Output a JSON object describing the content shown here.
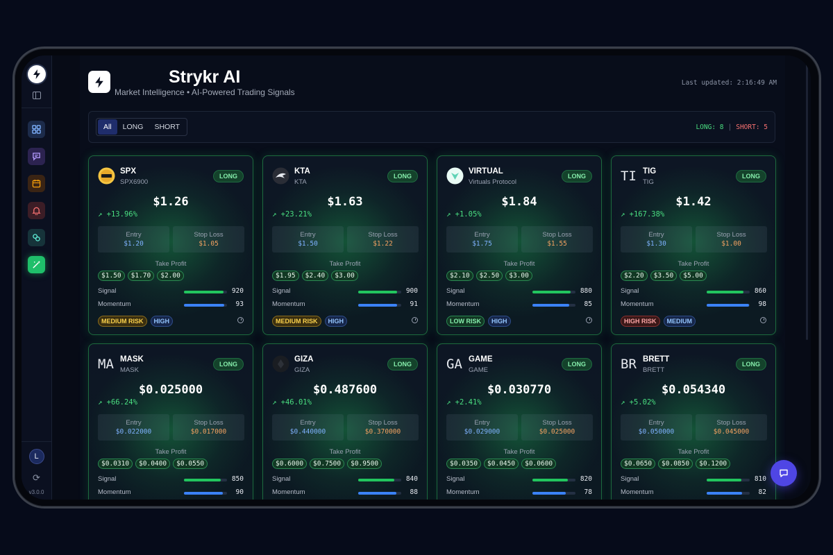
{
  "app": {
    "title": "Strykr AI",
    "subtitle": "Market Intelligence • AI-Powered Trading Signals",
    "last_updated": "Last updated: 2:16:49 AM",
    "version": "v3.0.0",
    "user_initial": "L"
  },
  "sidebar": {
    "items": [
      {
        "name": "dashboard",
        "icon": "grid-icon",
        "color": "#1c2b4a"
      },
      {
        "name": "chat",
        "icon": "message-icon",
        "color": "#2c2350"
      },
      {
        "name": "calendar",
        "icon": "calendar-icon",
        "color": "#3a2414"
      },
      {
        "name": "alerts",
        "icon": "bell-icon",
        "color": "#3c1d26"
      },
      {
        "name": "links",
        "icon": "link-icon",
        "color": "#16333a"
      },
      {
        "name": "signals",
        "icon": "magic-wand-icon",
        "color": "#1fbf6a"
      }
    ]
  },
  "filters": {
    "tabs": [
      "All",
      "LONG",
      "SHORT"
    ],
    "active": "All",
    "long_count": "LONG: 8",
    "separator": "|",
    "short_count": "SHORT: 5"
  },
  "labels": {
    "entry": "Entry",
    "stop_loss": "Stop Loss",
    "take_profit": "Take Profit",
    "signal": "Signal",
    "momentum": "Momentum"
  },
  "cards": [
    {
      "symbol": "SPX",
      "name": "SPX6900",
      "logo": "spx-coin-logo",
      "direction": "LONG",
      "price": "$1.26",
      "change": "+13.96%",
      "entry": "$1.20",
      "stop": "$1.05",
      "take_profit": [
        "$1.50",
        "$1.70",
        "$2.00"
      ],
      "signal": "920",
      "signal_pct": 0.92,
      "momentum": "93",
      "momentum_pct": 0.93,
      "risk": "MEDIUM RISK",
      "risk_level": "medium",
      "confidence": "HIGH"
    },
    {
      "symbol": "KTA",
      "name": "KTA",
      "logo": "kta-coin-logo",
      "direction": "LONG",
      "price": "$1.63",
      "change": "+23.21%",
      "entry": "$1.50",
      "stop": "$1.22",
      "take_profit": [
        "$1.95",
        "$2.40",
        "$3.00"
      ],
      "signal": "900",
      "signal_pct": 0.9,
      "momentum": "91",
      "momentum_pct": 0.91,
      "risk": "MEDIUM RISK",
      "risk_level": "medium",
      "confidence": "HIGH"
    },
    {
      "symbol": "VIRTUAL",
      "name": "Virtuals Protocol",
      "logo": "virtual-coin-logo",
      "direction": "LONG",
      "price": "$1.84",
      "change": "+1.05%",
      "entry": "$1.75",
      "stop": "$1.55",
      "take_profit": [
        "$2.10",
        "$2.50",
        "$3.00"
      ],
      "signal": "880",
      "signal_pct": 0.88,
      "momentum": "85",
      "momentum_pct": 0.85,
      "risk": "LOW RISK",
      "risk_level": "low",
      "confidence": "HIGH"
    },
    {
      "symbol": "TIG",
      "name": "TIG",
      "logo_text": "TI",
      "direction": "LONG",
      "price": "$1.42",
      "change": "+167.38%",
      "entry": "$1.30",
      "stop": "$1.00",
      "take_profit": [
        "$2.20",
        "$3.50",
        "$5.00"
      ],
      "signal": "860",
      "signal_pct": 0.86,
      "momentum": "98",
      "momentum_pct": 0.98,
      "risk": "HIGH RISK",
      "risk_level": "high",
      "confidence": "MEDIUM"
    },
    {
      "symbol": "MASK",
      "name": "MASK",
      "logo_text": "MA",
      "direction": "LONG",
      "price": "$0.025000",
      "change": "+66.24%",
      "entry": "$0.022000",
      "stop": "$0.017000",
      "take_profit": [
        "$0.0310",
        "$0.0400",
        "$0.0550"
      ],
      "signal": "850",
      "signal_pct": 0.85,
      "momentum": "90",
      "momentum_pct": 0.9
    },
    {
      "symbol": "GIZA",
      "name": "GIZA",
      "logo": "giza-coin-logo",
      "direction": "LONG",
      "price": "$0.487600",
      "change": "+46.01%",
      "entry": "$0.440000",
      "stop": "$0.370000",
      "take_profit": [
        "$0.6000",
        "$0.7500",
        "$0.9500"
      ],
      "signal": "840",
      "signal_pct": 0.84,
      "momentum": "88",
      "momentum_pct": 0.88
    },
    {
      "symbol": "GAME",
      "name": "GAME",
      "logo_text": "GA",
      "direction": "LONG",
      "price": "$0.030770",
      "change": "+2.41%",
      "entry": "$0.029000",
      "stop": "$0.025000",
      "take_profit": [
        "$0.0350",
        "$0.0450",
        "$0.0600"
      ],
      "signal": "820",
      "signal_pct": 0.82,
      "momentum": "78",
      "momentum_pct": 0.78
    },
    {
      "symbol": "BRETT",
      "name": "BRETT",
      "logo_text": "BR",
      "direction": "LONG",
      "price": "$0.054340",
      "change": "+5.02%",
      "entry": "$0.050000",
      "stop": "$0.045000",
      "take_profit": [
        "$0.0650",
        "$0.0850",
        "$0.1200"
      ],
      "signal": "810",
      "signal_pct": 0.81,
      "momentum": "82",
      "momentum_pct": 0.82
    }
  ]
}
